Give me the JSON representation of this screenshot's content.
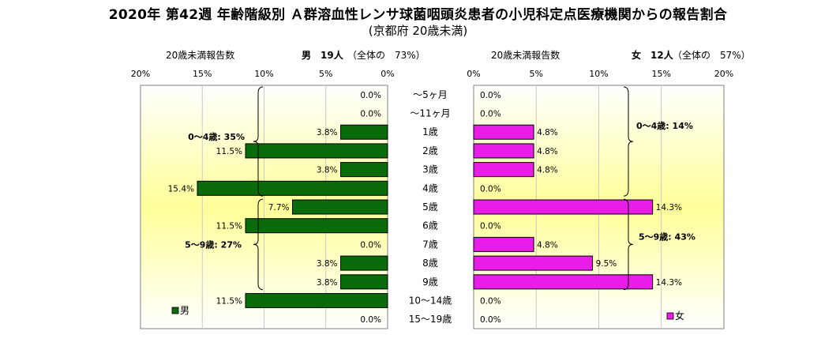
{
  "title": "2020年 第42週 年齢階級別 Ａ群溶血性レンサ球菌咽頭炎患者の小児科定点医療機関からの報告割合",
  "subtitle": "(京都府 20歳未満)",
  "header_left": {
    "label": "20歳未満報告数",
    "sex_count": "男　19人",
    "share": "（全体の　73%）"
  },
  "header_right": {
    "label": "20歳未満報告数",
    "sex_count": "女　12人",
    "share": "（全体の　57%）"
  },
  "brace_labels": {
    "male_0_4": "0～4歳: 35%",
    "male_5_9": "5～9歳: 27%",
    "female_0_4": "0～4歳: 14%",
    "female_5_9": "5～9歳: 43%"
  },
  "legend": {
    "male": "男",
    "female": "女"
  },
  "colors": {
    "male": "#0a6b0a",
    "female": "#e81de8",
    "plot_bg_edge": "#ffffff",
    "plot_bg_center": "#ffff99"
  },
  "chart_data": [
    {
      "type": "bar",
      "orientation": "horizontal",
      "direction": "right-to-left",
      "categories": [
        "～5ヶ月",
        "～11ヶ月",
        "1歳",
        "2歳",
        "3歳",
        "4歳",
        "5歳",
        "6歳",
        "7歳",
        "8歳",
        "9歳",
        "10～14歳",
        "15～19歳"
      ],
      "series": [
        {
          "name": "男",
          "values": [
            0.0,
            0.0,
            3.8,
            11.5,
            3.8,
            15.4,
            7.7,
            11.5,
            0.0,
            3.8,
            3.8,
            11.5,
            0.0
          ]
        }
      ],
      "value_labels": [
        "0.0%",
        "0.0%",
        "3.8%",
        "11.5%",
        "3.8%",
        "15.4%",
        "7.7%",
        "11.5%",
        "0.0%",
        "3.8%",
        "3.8%",
        "11.5%",
        "0.0%"
      ],
      "xlim": [
        0,
        20
      ],
      "x_ticks": [
        "20%",
        "15%",
        "10%",
        "5%",
        "0%"
      ],
      "grid": true
    },
    {
      "type": "bar",
      "orientation": "horizontal",
      "direction": "left-to-right",
      "categories": [
        "～5ヶ月",
        "～11ヶ月",
        "1歳",
        "2歳",
        "3歳",
        "4歳",
        "5歳",
        "6歳",
        "7歳",
        "8歳",
        "9歳",
        "10～14歳",
        "15～19歳"
      ],
      "series": [
        {
          "name": "女",
          "values": [
            0.0,
            0.0,
            4.8,
            4.8,
            4.8,
            0.0,
            14.3,
            0.0,
            4.8,
            9.5,
            14.3,
            0.0,
            0.0
          ]
        }
      ],
      "value_labels": [
        "0.0%",
        "0.0%",
        "4.8%",
        "4.8%",
        "4.8%",
        "0.0%",
        "14.3%",
        "0.0%",
        "4.8%",
        "9.5%",
        "14.3%",
        "0.0%",
        "0.0%"
      ],
      "xlim": [
        0,
        20
      ],
      "x_ticks": [
        "0%",
        "5%",
        "10%",
        "15%",
        "20%"
      ],
      "grid": true
    }
  ]
}
